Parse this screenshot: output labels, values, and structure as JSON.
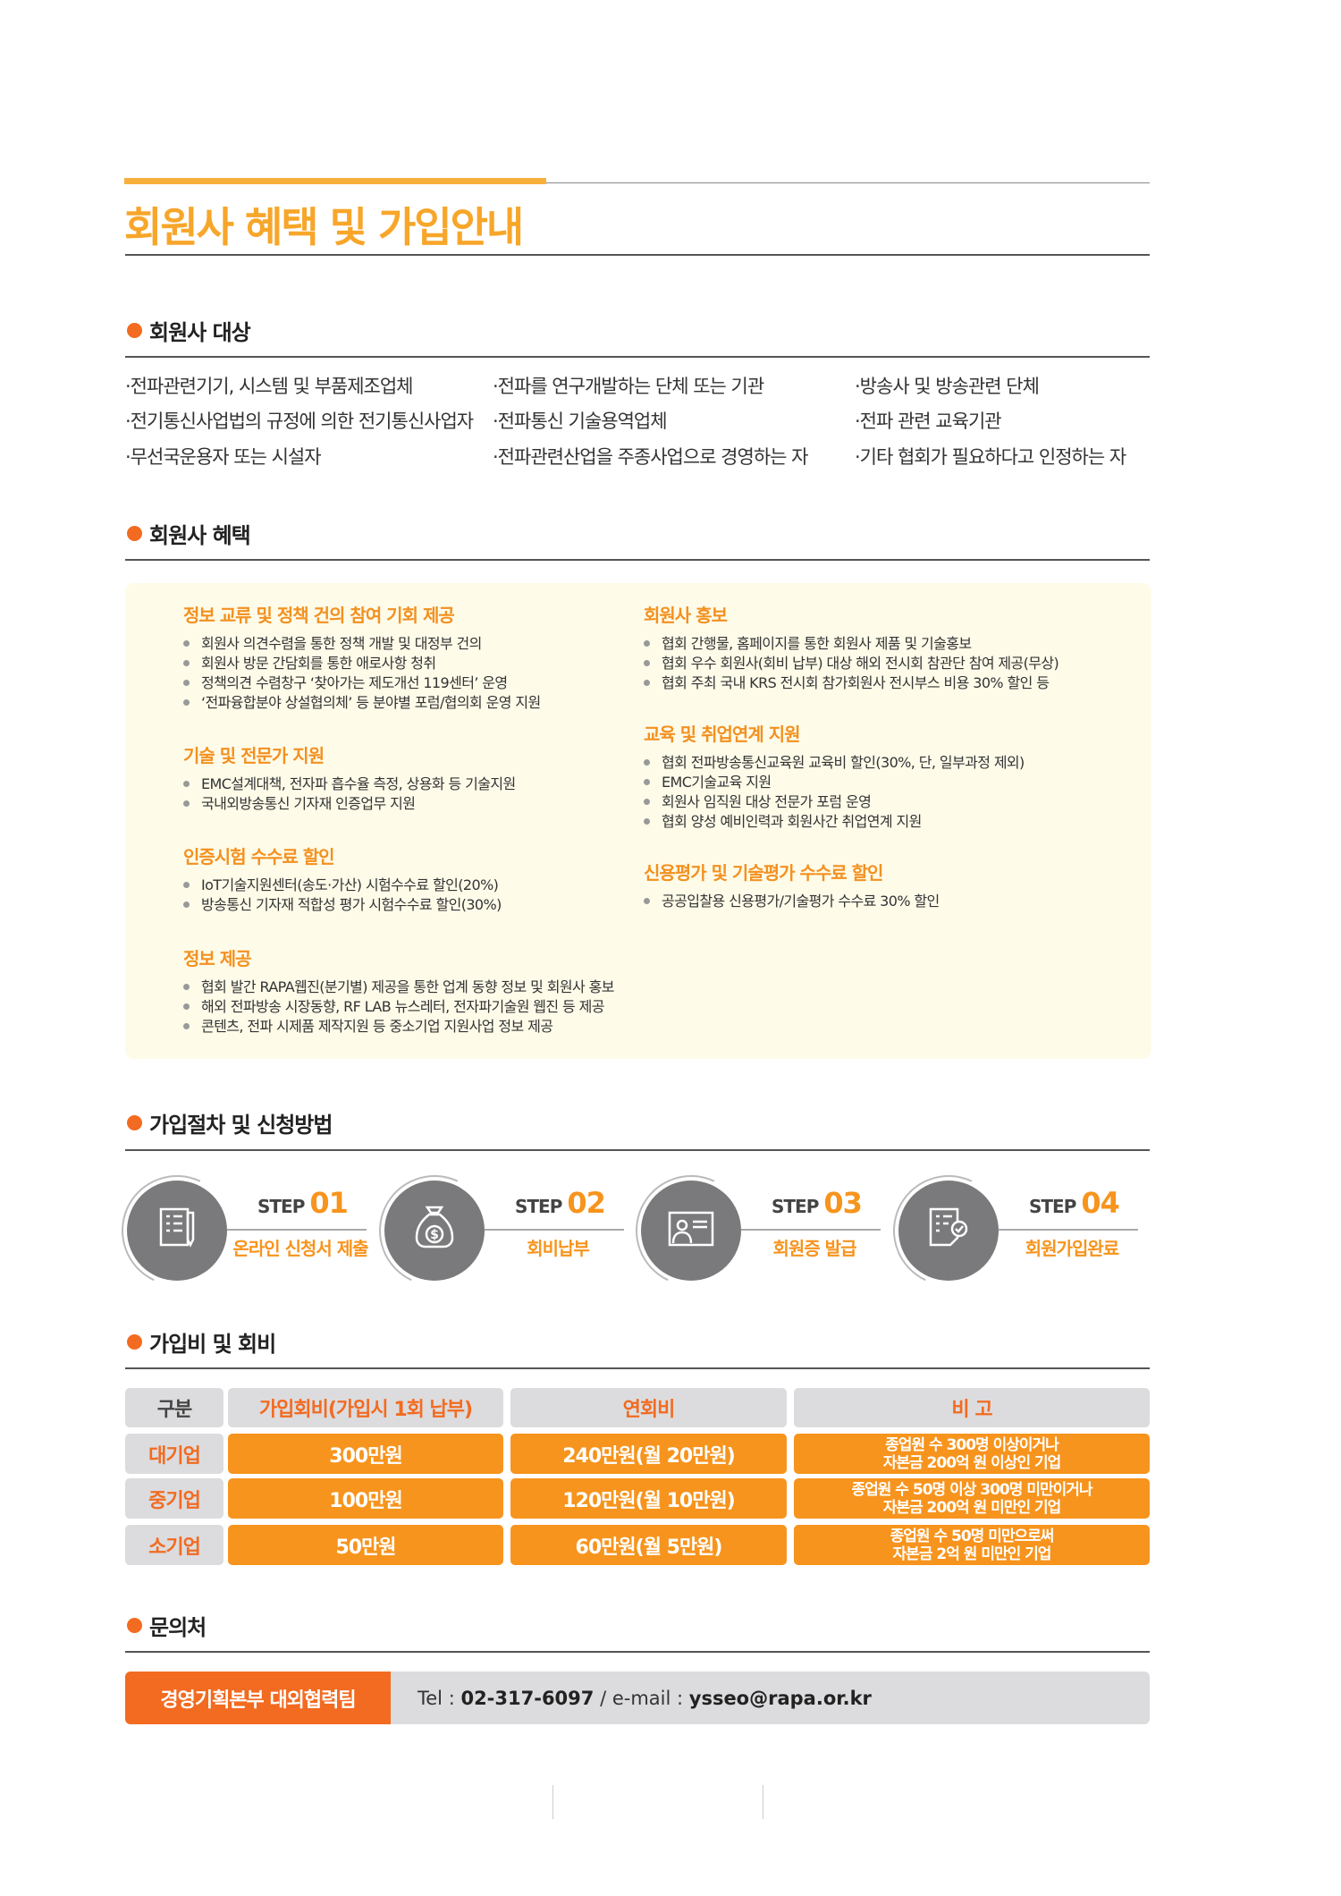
{
  "title": "회원사 혜택 및 가입안내",
  "targets": {
    "heading": "회원사 대상",
    "items": [
      "·전파관련기기, 시스템 및 부품제조업체",
      "·전파를 연구개발하는 단체 또는 기관",
      "·방송사 및 방송관련 단체",
      "·전기통신사업법의 규정에 의한 전기통신사업자",
      "·전파통신 기술용역업체",
      "·전파 관련 교육기관",
      "·무선국운용자 또는 시설자",
      "·전파관련산업을 주종사업으로 경영하는 자",
      "·기타 협회가 필요하다고 인정하는 자"
    ]
  },
  "benefits": {
    "heading": "회원사 혜택",
    "groups": [
      {
        "title": "정보 교류 및 정책 건의 참여 기회 제공",
        "items": [
          "회원사 의견수렴을 통한 정책 개발 및 대정부 건의",
          "회원사 방문 간담회를 통한 애로사항 청취",
          "정책의견 수렴창구 ‘찾아가는 제도개선 119센터’ 운영",
          "‘전파융합분야 상설협의체’ 등 분야별 포럼/협의회 운영 지원"
        ]
      },
      {
        "title": "기술 및 전문가 지원",
        "items": [
          "EMC설계대책, 전자파 흡수율 측정, 상용화 등 기술지원",
          "국내외방송통신 기자재 인증업무 지원"
        ]
      },
      {
        "title": "인증시험 수수료 할인",
        "items": [
          "IoT기술지원센터(송도·가산) 시험수수료 할인(20%)",
          "방송통신 기자재 적합성 평가 시험수수료 할인(30%)"
        ]
      },
      {
        "title": "정보 제공",
        "items": [
          "협회 발간 RAPA웹진(분기별) 제공을 통한 업계 동향 정보 및 회원사 홍보",
          "해외 전파방송 시장동향, RF LAB 뉴스레터, 전자파기술원 웹진 등 제공",
          "콘텐츠, 전파 시제품 제작지원 등 중소기업 지원사업 정보 제공"
        ]
      },
      {
        "title": "회원사 홍보",
        "items": [
          "협회 간행물, 홈페이지를 통한 회원사 제품 및 기술홍보",
          "협회 우수 회원사(회비 납부) 대상 해외 전시회 참관단 참여 제공(무상)",
          "협회 주최 국내 KRS 전시회 참가회원사 전시부스 비용 30% 할인 등"
        ]
      },
      {
        "title": "교육 및 취업연계 지원",
        "items": [
          "협회 전파방송통신교육원 교육비 할인(30%, 단, 일부과정 제외)",
          "EMC기술교육 지원",
          "회원사 임직원 대상 전문가 포럼 운영",
          "협회 양성 예비인력과 회원사간 취업연계 지원"
        ]
      },
      {
        "title": "신용평가 및 기술평가 수수료 할인",
        "items": [
          "공공입찰용 신용평가/기술평가 수수료 30% 할인"
        ]
      }
    ]
  },
  "procedure": {
    "heading": "가입절차 및 신청방법",
    "steps": [
      {
        "step": "STEP",
        "no": "01",
        "label": "온라인 신청서 제출",
        "icon": "application-form-icon"
      },
      {
        "step": "STEP",
        "no": "02",
        "label": "회비납부",
        "icon": "money-bag-icon"
      },
      {
        "step": "STEP",
        "no": "03",
        "label": "회원증 발급",
        "icon": "member-card-icon"
      },
      {
        "step": "STEP",
        "no": "04",
        "label": "회원가입완료",
        "icon": "approved-document-icon"
      }
    ]
  },
  "fees": {
    "heading": "가입비 및 회비",
    "columns": [
      "구분",
      "가입회비(가입시 1회 납부)",
      "연회비",
      "비   고"
    ],
    "rows": [
      {
        "type": "대기업",
        "join": "300만원",
        "annual": "240만원(월 20만원)",
        "note1": "종업원 수 300명 이상이거나",
        "note2": "자본금 200억 원 이상인 기업"
      },
      {
        "type": "중기업",
        "join": "100만원",
        "annual": "120만원(월 10만원)",
        "note1": "종업원 수 50명 이상 300명 미만이거나",
        "note2": "자본금 200억 원 미만인 기업"
      },
      {
        "type": "소기업",
        "join": "50만원",
        "annual": "60만원(월 5만원)",
        "note1": "종업원 수 50명 미만으로써",
        "note2": "자본금 2억 원 미만인 기업"
      }
    ]
  },
  "contact": {
    "heading": "문의처",
    "team": "경영기획본부 대외협력팀",
    "tel_label": "Tel : ",
    "tel": "02-317-6097",
    "email_label": " / e-mail : ",
    "email": "ysseo@rapa.or.kr"
  },
  "colors": {
    "title": "#f7a62a",
    "accent": "#f7941d",
    "dot": "#f26b21",
    "box": "#fefbe9"
  }
}
